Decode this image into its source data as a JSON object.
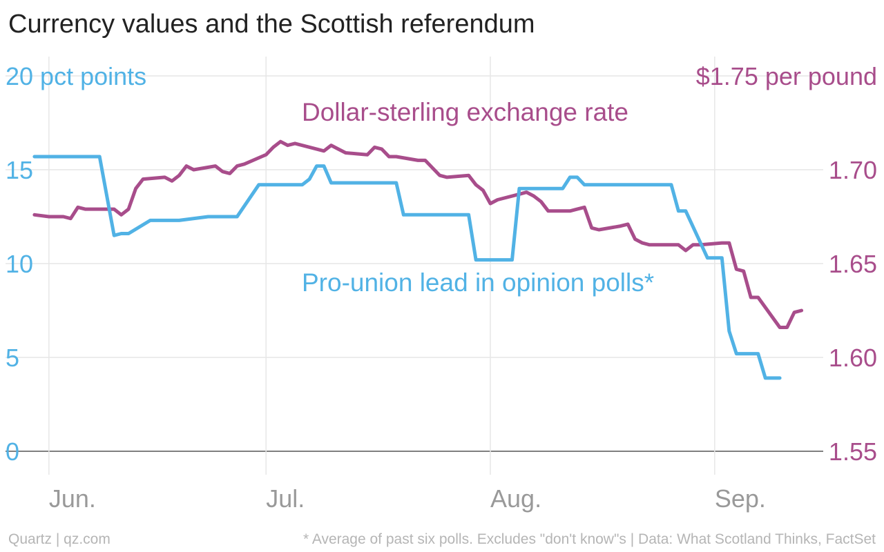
{
  "title": "Currency values and the Scottish referendum",
  "footer": {
    "source": "Quartz | qz.com",
    "note": "* Average of past six polls. Excludes \"don't know\"s | Data: What Scotland Thinks, FactSet"
  },
  "colors": {
    "poll": "#51b2e5",
    "fx": "#a84d8b",
    "grid": "#e6e6e6",
    "axis": "#555555",
    "xtick": "#999999"
  },
  "chart_data": {
    "type": "line",
    "title": "Currency values and the Scottish referendum",
    "date_range": [
      "2014-05-26",
      "2014-09-16"
    ],
    "x_ticks": [
      {
        "label": "Jun.",
        "date": "2014-06-01"
      },
      {
        "label": "Jul.",
        "date": "2014-07-01"
      },
      {
        "label": "Aug.",
        "date": "2014-08-01"
      },
      {
        "label": "Sep.",
        "date": "2014-09-01"
      }
    ],
    "left_axis": {
      "ylim": [
        0,
        20
      ],
      "ticks": [
        "0",
        "5",
        "10",
        "15",
        "20 pct points"
      ]
    },
    "right_axis": {
      "ylim": [
        1.55,
        1.75
      ],
      "ticks": [
        "1.55",
        "1.60",
        "1.65",
        "1.70",
        "$1.75 per pound"
      ]
    },
    "series": [
      {
        "name": "Dollar-sterling exchange rate",
        "axis": "right",
        "points": [
          [
            "2014-05-30",
            1.676
          ],
          [
            "2014-06-01",
            1.675
          ],
          [
            "2014-06-03",
            1.675
          ],
          [
            "2014-06-04",
            1.674
          ],
          [
            "2014-06-05",
            1.68
          ],
          [
            "2014-06-06",
            1.679
          ],
          [
            "2014-06-09",
            1.679
          ],
          [
            "2014-06-10",
            1.679
          ],
          [
            "2014-06-11",
            1.676
          ],
          [
            "2014-06-12",
            1.679
          ],
          [
            "2014-06-13",
            1.69
          ],
          [
            "2014-06-14",
            1.695
          ],
          [
            "2014-06-17",
            1.696
          ],
          [
            "2014-06-18",
            1.694
          ],
          [
            "2014-06-19",
            1.697
          ],
          [
            "2014-06-20",
            1.702
          ],
          [
            "2014-06-21",
            1.7
          ],
          [
            "2014-06-24",
            1.702
          ],
          [
            "2014-06-25",
            1.699
          ],
          [
            "2014-06-26",
            1.698
          ],
          [
            "2014-06-27",
            1.702
          ],
          [
            "2014-06-28",
            1.703
          ],
          [
            "2014-07-01",
            1.708
          ],
          [
            "2014-07-02",
            1.712
          ],
          [
            "2014-07-03",
            1.715
          ],
          [
            "2014-07-04",
            1.713
          ],
          [
            "2014-07-05",
            1.714
          ],
          [
            "2014-07-08",
            1.711
          ],
          [
            "2014-07-09",
            1.71
          ],
          [
            "2014-07-10",
            1.713
          ],
          [
            "2014-07-11",
            1.711
          ],
          [
            "2014-07-12",
            1.709
          ],
          [
            "2014-07-15",
            1.708
          ],
          [
            "2014-07-16",
            1.712
          ],
          [
            "2014-07-17",
            1.711
          ],
          [
            "2014-07-18",
            1.707
          ],
          [
            "2014-07-19",
            1.707
          ],
          [
            "2014-07-22",
            1.705
          ],
          [
            "2014-07-23",
            1.705
          ],
          [
            "2014-07-24",
            1.701
          ],
          [
            "2014-07-25",
            1.697
          ],
          [
            "2014-07-26",
            1.696
          ],
          [
            "2014-07-29",
            1.697
          ],
          [
            "2014-07-30",
            1.692
          ],
          [
            "2014-07-31",
            1.689
          ],
          [
            "2014-08-01",
            1.682
          ],
          [
            "2014-08-02",
            1.684
          ],
          [
            "2014-08-05",
            1.687
          ],
          [
            "2014-08-06",
            1.688
          ],
          [
            "2014-08-07",
            1.686
          ],
          [
            "2014-08-08",
            1.683
          ],
          [
            "2014-08-09",
            1.678
          ],
          [
            "2014-08-12",
            1.678
          ],
          [
            "2014-08-13",
            1.679
          ],
          [
            "2014-08-14",
            1.68
          ],
          [
            "2014-08-15",
            1.669
          ],
          [
            "2014-08-16",
            1.668
          ],
          [
            "2014-08-19",
            1.67
          ],
          [
            "2014-08-20",
            1.671
          ],
          [
            "2014-08-21",
            1.663
          ],
          [
            "2014-08-22",
            1.661
          ],
          [
            "2014-08-23",
            1.66
          ],
          [
            "2014-08-26",
            1.66
          ],
          [
            "2014-08-27",
            1.66
          ],
          [
            "2014-08-28",
            1.657
          ],
          [
            "2014-08-29",
            1.66
          ],
          [
            "2014-08-30",
            1.66
          ],
          [
            "2014-09-02",
            1.661
          ],
          [
            "2014-09-03",
            1.661
          ],
          [
            "2014-09-04",
            1.647
          ],
          [
            "2014-09-05",
            1.646
          ],
          [
            "2014-09-06",
            1.632
          ],
          [
            "2014-09-07",
            1.632
          ],
          [
            "2014-09-10",
            1.616
          ],
          [
            "2014-09-11",
            1.616
          ],
          [
            "2014-09-12",
            1.624
          ],
          [
            "2014-09-13",
            1.625
          ]
        ]
      },
      {
        "name": "Pro-union lead in opinion polls*",
        "axis": "left",
        "points": [
          [
            "2014-05-30",
            15.7
          ],
          [
            "2014-06-08",
            15.7
          ],
          [
            "2014-06-10",
            11.5
          ],
          [
            "2014-06-11",
            11.6
          ],
          [
            "2014-06-12",
            11.6
          ],
          [
            "2014-06-15",
            12.3
          ],
          [
            "2014-06-19",
            12.3
          ],
          [
            "2014-06-23",
            12.5
          ],
          [
            "2014-06-27",
            12.5
          ],
          [
            "2014-06-30",
            14.2
          ],
          [
            "2014-07-06",
            14.2
          ],
          [
            "2014-07-07",
            14.5
          ],
          [
            "2014-07-08",
            15.2
          ],
          [
            "2014-07-09",
            15.2
          ],
          [
            "2014-07-10",
            14.3
          ],
          [
            "2014-07-19",
            14.3
          ],
          [
            "2014-07-20",
            12.6
          ],
          [
            "2014-07-29",
            12.6
          ],
          [
            "2014-07-30",
            10.2
          ],
          [
            "2014-08-04",
            10.2
          ],
          [
            "2014-08-05",
            14.0
          ],
          [
            "2014-08-11",
            14.0
          ],
          [
            "2014-08-12",
            14.6
          ],
          [
            "2014-08-13",
            14.6
          ],
          [
            "2014-08-14",
            14.2
          ],
          [
            "2014-08-26",
            14.2
          ],
          [
            "2014-08-27",
            12.8
          ],
          [
            "2014-08-28",
            12.8
          ],
          [
            "2014-08-31",
            10.3
          ],
          [
            "2014-09-02",
            10.3
          ],
          [
            "2014-09-03",
            6.4
          ],
          [
            "2014-09-04",
            5.2
          ],
          [
            "2014-09-07",
            5.2
          ],
          [
            "2014-09-08",
            3.9
          ],
          [
            "2014-09-10",
            3.9
          ]
        ]
      }
    ],
    "annotations": [
      {
        "text": "Dollar-sterling exchange rate",
        "series": "Dollar-sterling exchange rate"
      },
      {
        "text": "Pro-union lead in opinion polls*",
        "series": "Pro-union lead in opinion polls*"
      }
    ],
    "grid": true
  }
}
